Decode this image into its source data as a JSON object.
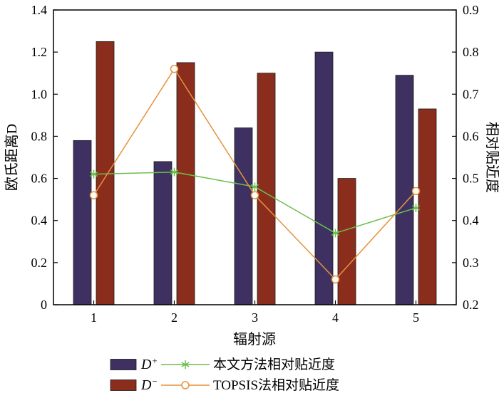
{
  "chart_data": {
    "type": "bar+line",
    "categories": [
      "1",
      "2",
      "3",
      "4",
      "5"
    ],
    "xlabel": "辐射源",
    "ylabel_left": "欧氏距离D",
    "ylabel_right": "相对贴近度",
    "ylim_left": [
      0,
      1.4
    ],
    "yticks_left": [
      "0",
      "0.2",
      "0.4",
      "0.6",
      "0.8",
      "1.0",
      "1.2",
      "1.4"
    ],
    "ylim_right": [
      0.2,
      0.9
    ],
    "yticks_right": [
      "0.2",
      "0.3",
      "0.4",
      "0.5",
      "0.6",
      "0.7",
      "0.8",
      "0.9"
    ],
    "grid": false,
    "legend_position": "bottom",
    "bar_series": [
      {
        "name": "D+",
        "label_base": "D",
        "label_sup": "+",
        "axis": "left",
        "color": "#3e3161",
        "values": [
          0.78,
          0.68,
          0.84,
          1.2,
          1.09
        ]
      },
      {
        "name": "D-",
        "label_base": "D",
        "label_sup": "−",
        "axis": "left",
        "color": "#8a2d1d",
        "values": [
          1.25,
          1.15,
          1.1,
          0.6,
          0.93
        ]
      }
    ],
    "line_series": [
      {
        "name": "本文方法相对贴近度",
        "axis": "right",
        "color": "#6cbf4a",
        "marker": "asterisk",
        "values": [
          0.51,
          0.515,
          0.48,
          0.37,
          0.43
        ]
      },
      {
        "name": "TOPSIS法相对贴近度",
        "axis": "right",
        "color": "#e6923c",
        "marker": "circle",
        "values": [
          0.46,
          0.76,
          0.46,
          0.26,
          0.47
        ]
      }
    ]
  }
}
